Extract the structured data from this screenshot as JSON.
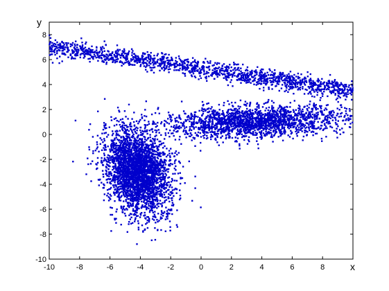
{
  "chart_data": {
    "type": "scatter",
    "title": "",
    "xlabel": "x",
    "ylabel": "y",
    "xlim": [
      -10,
      10
    ],
    "ylim": [
      -10,
      9
    ],
    "xticks": [
      "-10",
      "-8",
      "-6",
      "-4",
      "-2",
      "0",
      "2",
      "4",
      "6",
      "8"
    ],
    "yticks": [
      "-10",
      "-8",
      "-6",
      "-4",
      "-2",
      "0",
      "2",
      "4",
      "6",
      "8"
    ],
    "grid": false,
    "marker_color": "#0000cc",
    "clusters": [
      {
        "kind": "band",
        "x_from": -10,
        "x_to": 10,
        "y_from": 7.0,
        "y_to": 3.5,
        "spread": 0.35,
        "count": 1500
      },
      {
        "kind": "blob",
        "x_center": -4.2,
        "y_center": -3.0,
        "x_spread": 1.1,
        "y_spread": 2.3,
        "tilt": 0.72,
        "count": 3000
      },
      {
        "kind": "blob",
        "x_center": 3.5,
        "y_center": 1.0,
        "x_spread": 3.0,
        "y_spread": 0.7,
        "tilt": 0.05,
        "count": 2000
      }
    ]
  }
}
